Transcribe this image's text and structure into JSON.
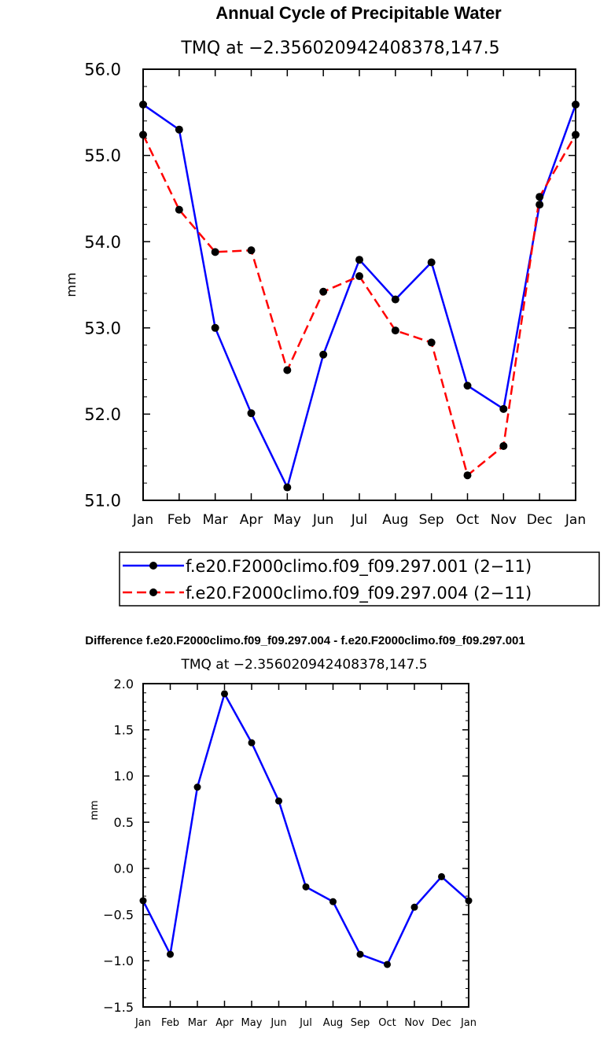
{
  "chart_data": [
    {
      "type": "line",
      "title": "Annual Cycle of Precipitable Water",
      "subtitle": "TMQ at −2.356020942408378,147.5",
      "xlabel": "",
      "ylabel": "mm",
      "categories": [
        "Jan",
        "Feb",
        "Mar",
        "Apr",
        "May",
        "Jun",
        "Jul",
        "Aug",
        "Sep",
        "Oct",
        "Nov",
        "Dec",
        "Jan"
      ],
      "ylim": [
        51.0,
        56.0
      ],
      "yticks": [
        "51.0",
        "52.0",
        "53.0",
        "54.0",
        "55.0",
        "56.0"
      ],
      "grid": false,
      "legend": "bottom",
      "series": [
        {
          "name": "f.e20.F2000climo.f09_f09.297.001 (2−11)",
          "color": "#0000ff",
          "dash": "solid",
          "values": [
            55.59,
            55.3,
            53.0,
            52.01,
            51.15,
            52.69,
            53.79,
            53.33,
            53.76,
            52.33,
            52.06,
            54.43,
            55.59
          ]
        },
        {
          "name": "f.e20.F2000climo.f09_f09.297.004 (2−11)",
          "color": "#ff0000",
          "dash": "dashed",
          "values": [
            55.24,
            54.37,
            53.88,
            53.9,
            52.51,
            53.42,
            53.6,
            52.97,
            52.83,
            51.29,
            51.63,
            54.52,
            55.24
          ]
        }
      ]
    },
    {
      "type": "line",
      "title": "Difference f.e20.F2000climo.f09_f09.297.004 - f.e20.F2000climo.f09_f09.297.001",
      "subtitle": "TMQ at −2.356020942408378,147.5",
      "xlabel": "",
      "ylabel": "mm",
      "categories": [
        "Jan",
        "Feb",
        "Mar",
        "Apr",
        "May",
        "Jun",
        "Jul",
        "Aug",
        "Sep",
        "Oct",
        "Nov",
        "Dec",
        "Jan"
      ],
      "ylim": [
        -1.5,
        2.0
      ],
      "yticks": [
        "−1.5",
        "−1.0",
        "−0.5",
        "0.0",
        "0.5",
        "1.0",
        "1.5",
        "2.0"
      ],
      "grid": false,
      "legend": "none",
      "series": [
        {
          "color": "#0000ff",
          "dash": "solid",
          "values": [
            -0.35,
            -0.93,
            0.88,
            1.89,
            1.36,
            0.73,
            -0.2,
            -0.36,
            -0.93,
            -1.04,
            -0.42,
            -0.09,
            -0.35
          ]
        }
      ]
    }
  ]
}
